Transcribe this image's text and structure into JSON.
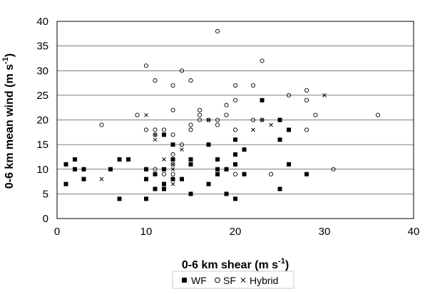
{
  "chart_data": {
    "type": "scatter",
    "xlabel": "0-6 km shear (m s",
    "xlabel_sup": "-1",
    "xlabel_close": ")",
    "ylabel": "0-6 km mean wind (m s",
    "ylabel_sup": "-1",
    "ylabel_close": ")",
    "xlim": [
      0,
      40
    ],
    "ylim": [
      0,
      40
    ],
    "x_ticks": [
      0,
      10,
      20,
      30,
      40
    ],
    "y_ticks": [
      0,
      5,
      10,
      15,
      20,
      25,
      30,
      35,
      40
    ],
    "grid": "horizontal",
    "legend": "bottom",
    "series": [
      {
        "name": "WF",
        "marker": "filled-square",
        "color": "#000000",
        "points": [
          [
            1,
            11
          ],
          [
            1,
            7
          ],
          [
            2,
            10
          ],
          [
            2,
            12
          ],
          [
            3,
            10
          ],
          [
            3,
            8
          ],
          [
            6,
            10
          ],
          [
            7,
            4
          ],
          [
            7,
            12
          ],
          [
            8,
            12
          ],
          [
            10,
            4
          ],
          [
            10,
            10
          ],
          [
            10,
            8
          ],
          [
            11,
            9
          ],
          [
            11,
            6
          ],
          [
            12,
            17
          ],
          [
            12,
            7
          ],
          [
            12,
            6
          ],
          [
            12,
            10
          ],
          [
            13,
            15
          ],
          [
            13,
            12
          ],
          [
            13,
            8
          ],
          [
            14,
            8
          ],
          [
            15,
            5
          ],
          [
            15,
            11
          ],
          [
            15,
            12
          ],
          [
            17,
            7
          ],
          [
            17,
            15
          ],
          [
            18,
            12
          ],
          [
            18,
            10
          ],
          [
            18,
            9
          ],
          [
            19,
            5
          ],
          [
            19,
            10
          ],
          [
            20,
            16
          ],
          [
            20,
            13
          ],
          [
            20,
            11
          ],
          [
            20,
            4
          ],
          [
            21,
            14
          ],
          [
            21,
            9
          ],
          [
            23,
            24
          ],
          [
            25,
            20
          ],
          [
            25,
            16
          ],
          [
            25,
            6
          ],
          [
            26,
            18
          ],
          [
            26,
            11
          ],
          [
            28,
            9
          ]
        ]
      },
      {
        "name": "SF",
        "marker": "open-circle",
        "color": "#000000",
        "points": [
          [
            5,
            19
          ],
          [
            9,
            21
          ],
          [
            10,
            31
          ],
          [
            10,
            18
          ],
          [
            11,
            28
          ],
          [
            11,
            18
          ],
          [
            11,
            17
          ],
          [
            11,
            10
          ],
          [
            12,
            18
          ],
          [
            12,
            9
          ],
          [
            13,
            27
          ],
          [
            13,
            22
          ],
          [
            13,
            17
          ],
          [
            13,
            13
          ],
          [
            13,
            11
          ],
          [
            13,
            9
          ],
          [
            14,
            30
          ],
          [
            14,
            15
          ],
          [
            15,
            28
          ],
          [
            15,
            19
          ],
          [
            15,
            18
          ],
          [
            16,
            22
          ],
          [
            16,
            21
          ],
          [
            16,
            20
          ],
          [
            17,
            20
          ],
          [
            18,
            38
          ],
          [
            18,
            20
          ],
          [
            18,
            19
          ],
          [
            19,
            23
          ],
          [
            19,
            21
          ],
          [
            20,
            27
          ],
          [
            20,
            24
          ],
          [
            20,
            18
          ],
          [
            20,
            9
          ],
          [
            22,
            27
          ],
          [
            22,
            20
          ],
          [
            23,
            32
          ],
          [
            23,
            20
          ],
          [
            24,
            9
          ],
          [
            26,
            25
          ],
          [
            28,
            26
          ],
          [
            28,
            24
          ],
          [
            28,
            18
          ],
          [
            29,
            21
          ],
          [
            31,
            10
          ],
          [
            36,
            21
          ]
        ]
      },
      {
        "name": "Hybrid",
        "marker": "x",
        "color": "#000000",
        "points": [
          [
            5,
            8
          ],
          [
            10,
            21
          ],
          [
            11,
            17
          ],
          [
            11,
            16
          ],
          [
            12,
            12
          ],
          [
            13,
            11
          ],
          [
            13,
            10
          ],
          [
            13,
            7
          ],
          [
            14,
            14
          ],
          [
            17,
            20
          ],
          [
            22,
            18
          ],
          [
            23,
            20
          ],
          [
            24,
            19
          ],
          [
            30,
            25
          ]
        ]
      }
    ]
  }
}
